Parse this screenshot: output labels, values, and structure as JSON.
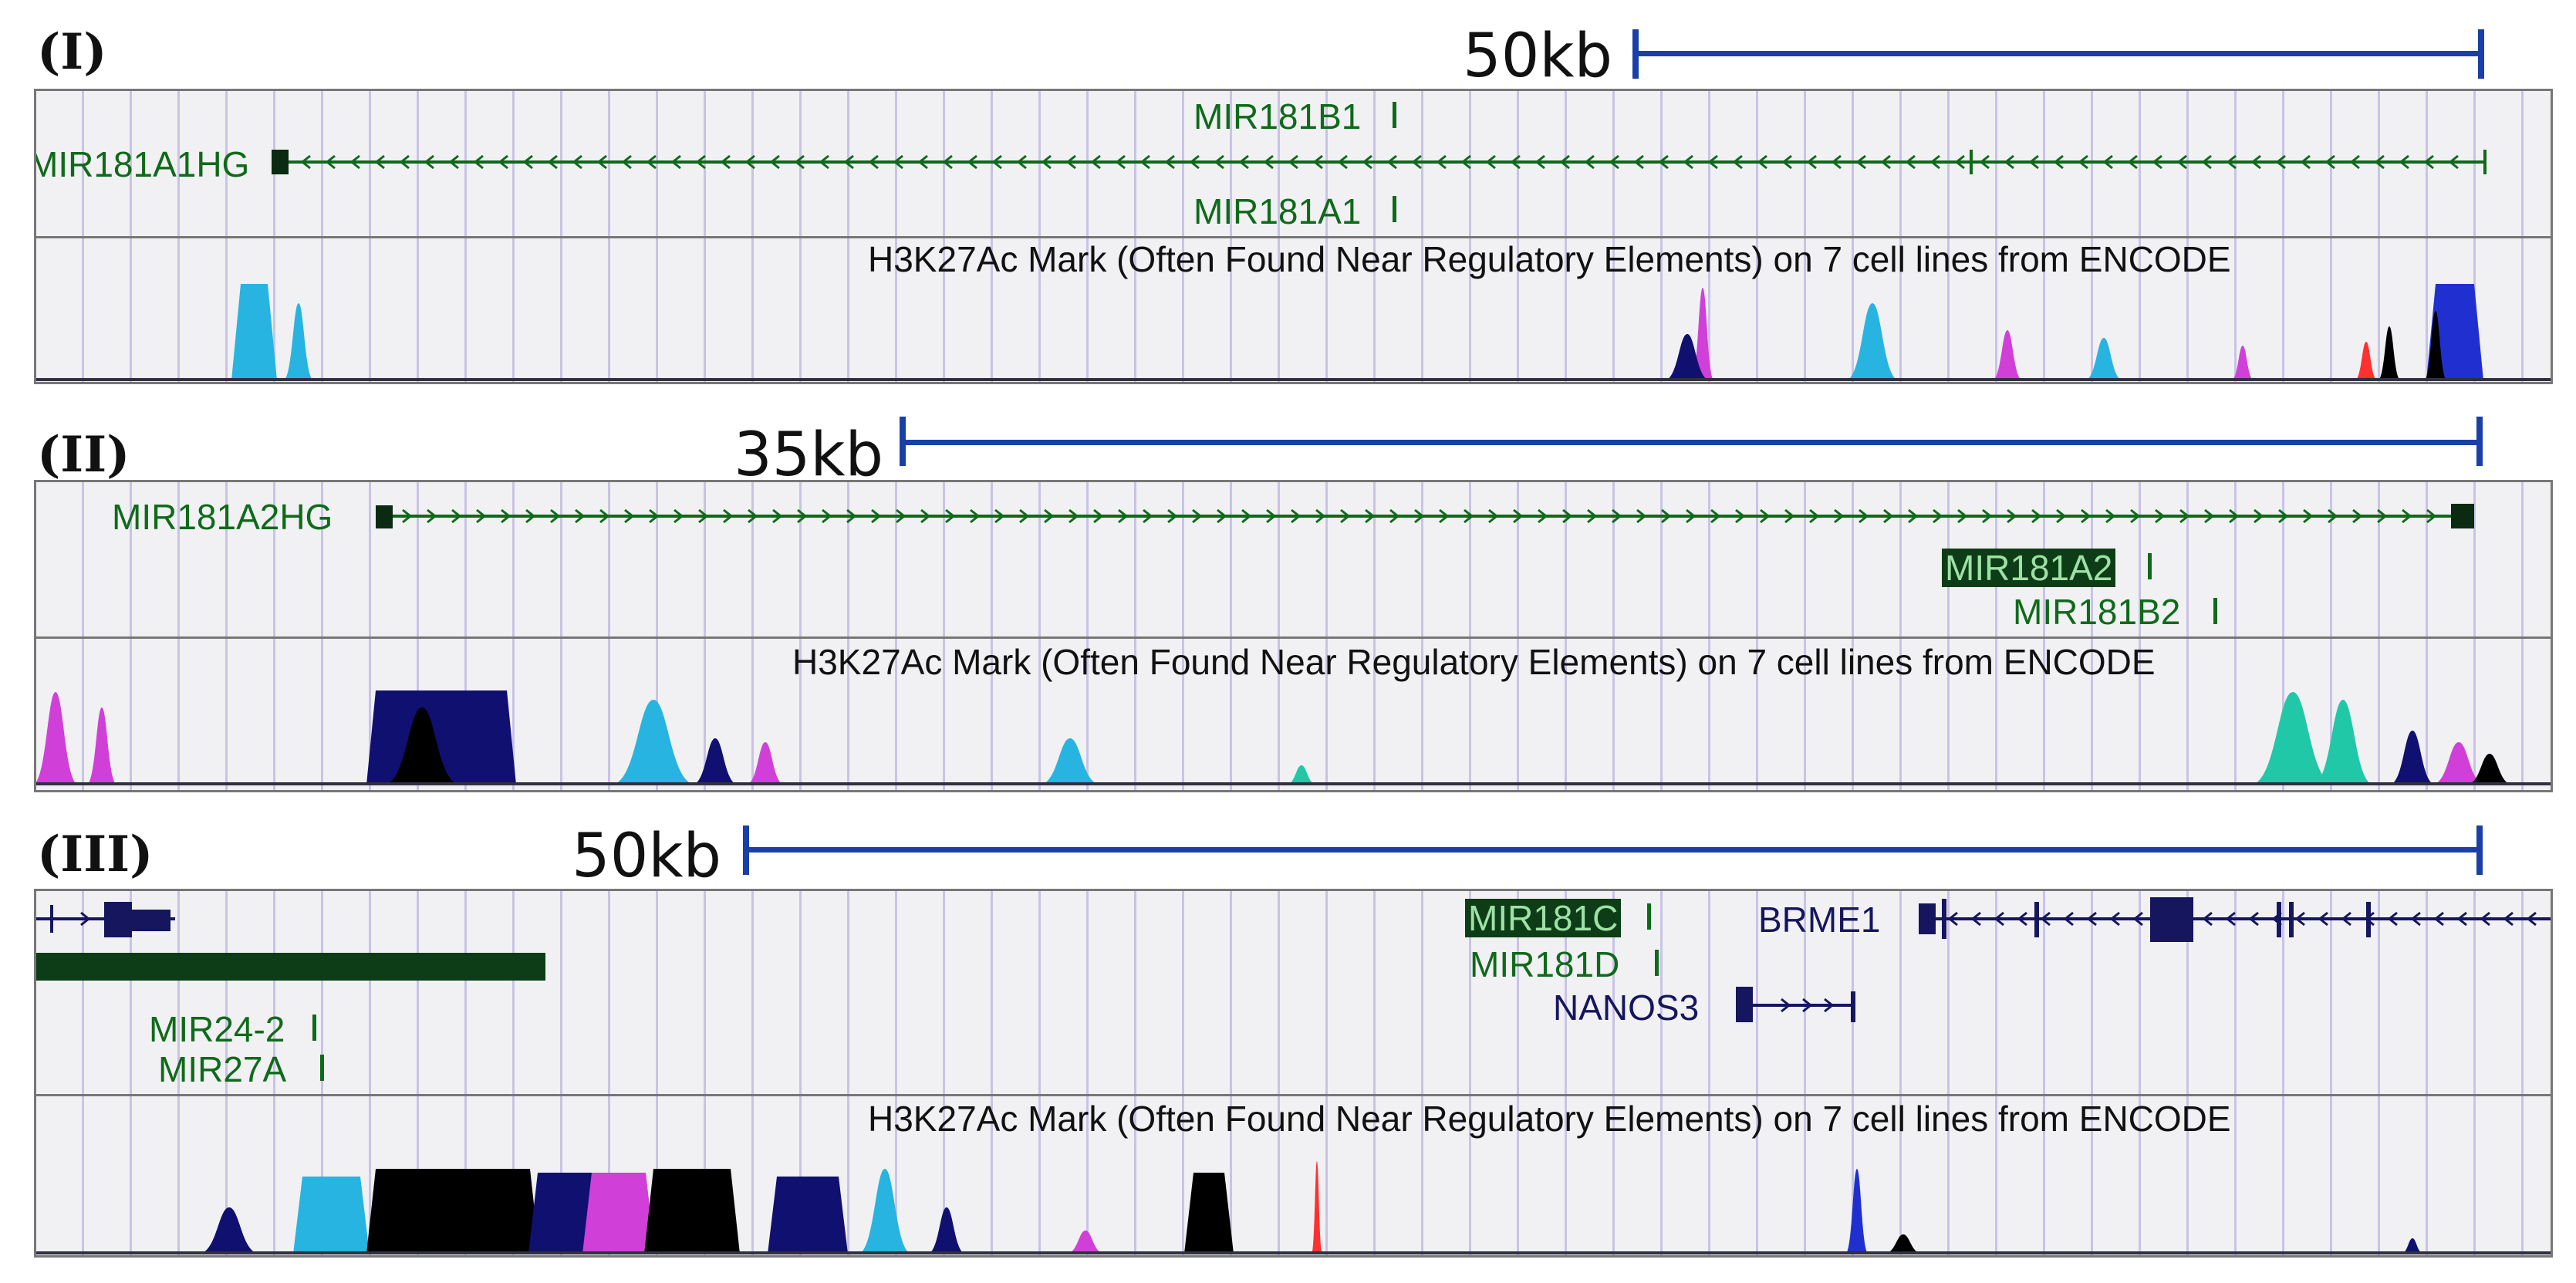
{
  "panels": [
    {
      "label": "(I)",
      "scale": "50kb",
      "genes": [
        "MIR181B1",
        "MIR181A1HG",
        "MIR181A1"
      ],
      "track_title": "H3K27Ac Mark (Often Found Near Regulatory Elements) on 7 cell lines from ENCODE"
    },
    {
      "label": "(II)",
      "scale": "35kb",
      "genes": [
        "MIR181A2HG",
        "MIR181A2",
        "MIR181B2"
      ],
      "track_title": "H3K27Ac Mark (Often Found Near Regulatory Elements) on 7 cell lines from ENCODE"
    },
    {
      "label": "(III)",
      "scale": "50kb",
      "genes": [
        "MIR181C",
        "BRME1",
        "MIR181D",
        "NANOS3",
        "MIR24-2",
        "MIR27A"
      ],
      "track_title": "H3K27Ac Mark (Often Found Near Regulatory Elements) on 7 cell lines from ENCODE"
    }
  ],
  "colors": {
    "scale_bar": "#1a3fa8",
    "gene_green": "#0f6a1a",
    "gene_navy": "#15165e",
    "signal_cyan": "#28b4e0",
    "signal_magenta": "#d040d8",
    "signal_teal": "#20c8a8",
    "signal_black": "#000000",
    "signal_navy": "#101070",
    "signal_red": "#ff3030",
    "signal_blue": "#2030d0"
  }
}
